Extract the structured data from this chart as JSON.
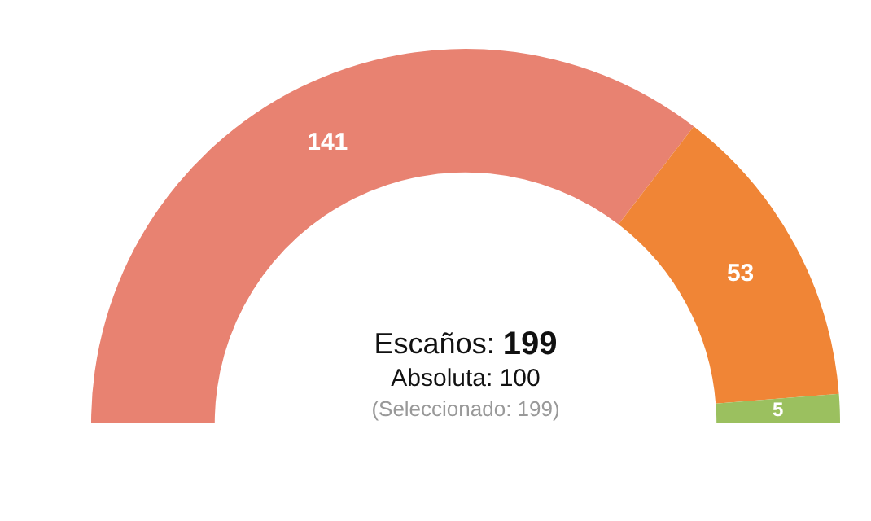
{
  "chart_data": {
    "type": "donut",
    "categories": [
      null,
      null,
      null
    ],
    "values": [
      141,
      53,
      5
    ],
    "colors": [
      "#e88271",
      "#f08536",
      "#9bc05f"
    ],
    "data_labels": true,
    "annotations": [
      "Escaños: 199",
      "Absoluta: 100",
      "(Seleccionado: 199)"
    ]
  }
}
